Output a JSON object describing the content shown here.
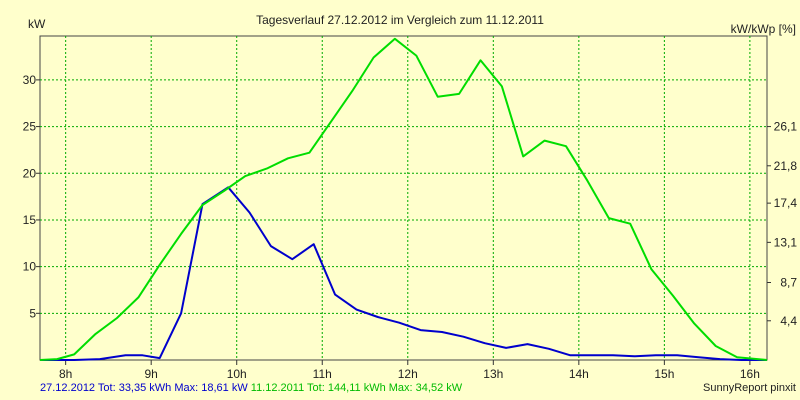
{
  "chart_data": {
    "type": "line",
    "title": "Tagesverlauf 27.12.2012 im Vergleich zum 11.12.2011",
    "ylabel_left": "kW",
    "ylabel_right": "kW/kWp [%]",
    "xlim": [
      7.7,
      16.2
    ],
    "ylim": [
      0,
      34.7
    ],
    "x_ticks": [
      {
        "value": 8,
        "label": "8h"
      },
      {
        "value": 9,
        "label": "9h"
      },
      {
        "value": 10,
        "label": "10h"
      },
      {
        "value": 11,
        "label": "11h"
      },
      {
        "value": 12,
        "label": "12h"
      },
      {
        "value": 13,
        "label": "13h"
      },
      {
        "value": 14,
        "label": "14h"
      },
      {
        "value": 15,
        "label": "15h"
      },
      {
        "value": 16,
        "label": "16h"
      }
    ],
    "y_ticks_left": [
      {
        "value": 5,
        "label": "5"
      },
      {
        "value": 10,
        "label": "10"
      },
      {
        "value": 15,
        "label": "15"
      },
      {
        "value": 20,
        "label": "20"
      },
      {
        "value": 25,
        "label": "25"
      },
      {
        "value": 30,
        "label": "30"
      }
    ],
    "y_ticks_right": [
      {
        "value": 4.2,
        "label": "4,4"
      },
      {
        "value": 8.3,
        "label": "8,7"
      },
      {
        "value": 12.6,
        "label": "13,1"
      },
      {
        "value": 16.8,
        "label": "17,4"
      },
      {
        "value": 20.8,
        "label": "21,8"
      },
      {
        "value": 25,
        "label": "26,1"
      }
    ],
    "grid": true,
    "series": [
      {
        "name": "27.12.2012",
        "color": "#0000cc",
        "points": [
          [
            7.7,
            0
          ],
          [
            8.1,
            0
          ],
          [
            8.4,
            0.1
          ],
          [
            8.7,
            0.5
          ],
          [
            8.9,
            0.5
          ],
          [
            9.1,
            0.2
          ],
          [
            9.35,
            5
          ],
          [
            9.6,
            16.7
          ],
          [
            9.9,
            18.5
          ],
          [
            10.15,
            15.8
          ],
          [
            10.4,
            12.2
          ],
          [
            10.65,
            10.8
          ],
          [
            10.9,
            12.4
          ],
          [
            11.15,
            7
          ],
          [
            11.4,
            5.4
          ],
          [
            11.65,
            4.6
          ],
          [
            11.9,
            4
          ],
          [
            12.15,
            3.2
          ],
          [
            12.4,
            3
          ],
          [
            12.65,
            2.5
          ],
          [
            12.9,
            1.8
          ],
          [
            13.15,
            1.3
          ],
          [
            13.4,
            1.7
          ],
          [
            13.65,
            1.2
          ],
          [
            13.9,
            0.5
          ],
          [
            14.15,
            0.5
          ],
          [
            14.4,
            0.5
          ],
          [
            14.65,
            0.4
          ],
          [
            14.9,
            0.5
          ],
          [
            15.15,
            0.5
          ],
          [
            15.4,
            0.3
          ],
          [
            15.65,
            0.1
          ],
          [
            15.9,
            0
          ],
          [
            16.2,
            0
          ]
        ]
      },
      {
        "name": "11.12.2011",
        "color": "#00dd00",
        "points": [
          [
            7.7,
            0
          ],
          [
            7.9,
            0.1
          ],
          [
            8.1,
            0.6
          ],
          [
            8.35,
            2.8
          ],
          [
            8.6,
            4.5
          ],
          [
            8.85,
            6.7
          ],
          [
            9.1,
            10.2
          ],
          [
            9.35,
            13.5
          ],
          [
            9.6,
            16.6
          ],
          [
            9.85,
            18.1
          ],
          [
            10.1,
            19.7
          ],
          [
            10.35,
            20.5
          ],
          [
            10.6,
            21.6
          ],
          [
            10.85,
            22.2
          ],
          [
            11.1,
            25.5
          ],
          [
            11.35,
            28.8
          ],
          [
            11.6,
            32.4
          ],
          [
            11.85,
            34.4
          ],
          [
            12.1,
            32.6
          ],
          [
            12.35,
            28.2
          ],
          [
            12.6,
            28.5
          ],
          [
            12.85,
            32.1
          ],
          [
            13.1,
            29.3
          ],
          [
            13.35,
            21.8
          ],
          [
            13.6,
            23.5
          ],
          [
            13.85,
            22.9
          ],
          [
            14.1,
            19.2
          ],
          [
            14.35,
            15.2
          ],
          [
            14.6,
            14.6
          ],
          [
            14.85,
            9.7
          ],
          [
            15.1,
            6.9
          ],
          [
            15.35,
            3.9
          ],
          [
            15.6,
            1.5
          ],
          [
            15.85,
            0.3
          ],
          [
            16.2,
            0
          ]
        ]
      }
    ]
  },
  "footer": {
    "series1_summary": "27.12.2012 Tot: 33,35 kWh Max: 18,61 kW",
    "series2_summary": "11.12.2011 Tot: 144,11 kWh Max: 34,52 kW",
    "credit": "SunnyReport pinxit"
  }
}
